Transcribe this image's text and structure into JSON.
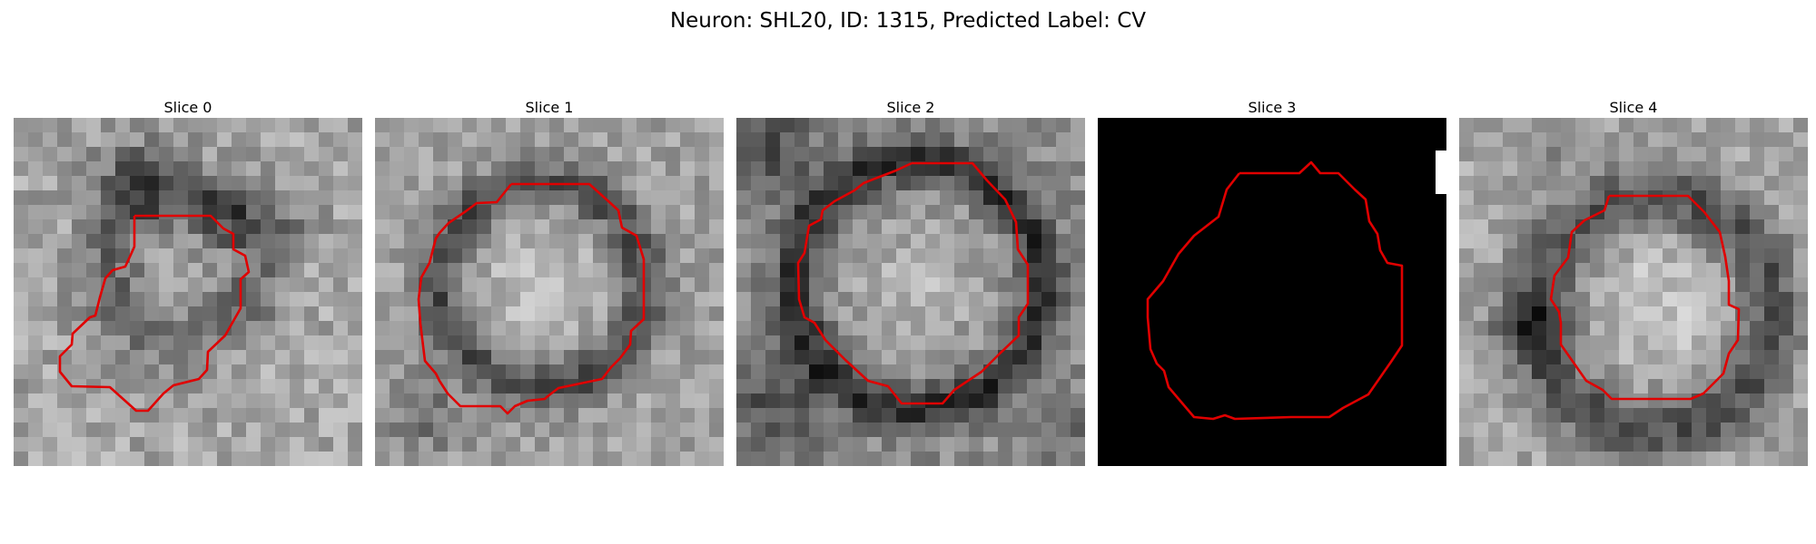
{
  "figure": {
    "title": "Neuron: SHL20, ID: 1315, Predicted Label: CV"
  },
  "panels": [
    {
      "title": "Slice 0",
      "image": "grayscale-noisy-em-patch",
      "contour_color": "#e00000"
    },
    {
      "title": "Slice 1",
      "image": "grayscale-noisy-em-patch",
      "contour_color": "#e00000"
    },
    {
      "title": "Slice 2",
      "image": "grayscale-noisy-em-patch",
      "contour_color": "#e00000"
    },
    {
      "title": "Slice 3",
      "image": "black-blank-patch",
      "contour_color": "#e00000"
    },
    {
      "title": "Slice 4",
      "image": "grayscale-noisy-em-patch",
      "contour_color": "#e00000"
    }
  ],
  "colors": {
    "contour": "#e00000",
    "background": "#ffffff"
  }
}
